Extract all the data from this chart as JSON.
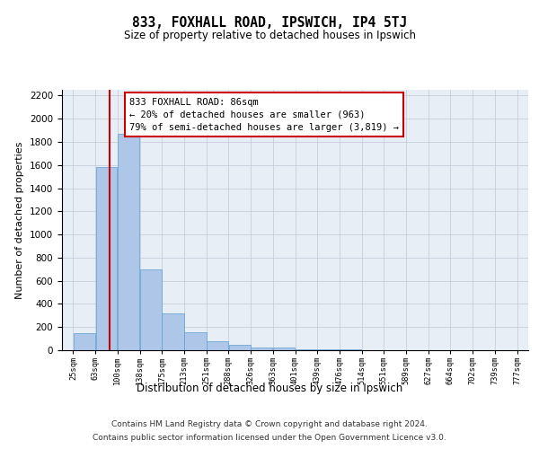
{
  "title": "833, FOXHALL ROAD, IPSWICH, IP4 5TJ",
  "subtitle": "Size of property relative to detached houses in Ipswich",
  "xlabel": "Distribution of detached houses by size in Ipswich",
  "ylabel": "Number of detached properties",
  "footer_line1": "Contains HM Land Registry data © Crown copyright and database right 2024.",
  "footer_line2": "Contains public sector information licensed under the Open Government Licence v3.0.",
  "annotation_title": "833 FOXHALL ROAD: 86sqm",
  "annotation_line2": "← 20% of detached houses are smaller (963)",
  "annotation_line3": "79% of semi-detached houses are larger (3,819) →",
  "property_size": 86,
  "bar_left_edges": [
    25,
    63,
    100,
    138,
    175,
    213,
    251,
    288,
    326,
    363,
    401,
    439,
    476,
    514,
    551,
    589,
    627,
    664,
    702,
    739
  ],
  "bar_widths": [
    38,
    37,
    38,
    37,
    38,
    38,
    37,
    38,
    37,
    38,
    38,
    37,
    38,
    37,
    38,
    38,
    37,
    38,
    37,
    38
  ],
  "bar_heights": [
    150,
    1580,
    1870,
    700,
    315,
    155,
    80,
    45,
    25,
    20,
    10,
    5,
    5,
    3,
    2,
    1,
    1,
    0,
    0,
    0
  ],
  "bar_color": "#aec6e8",
  "bar_edge_color": "#5a9fd4",
  "red_line_color": "#cc0000",
  "annotation_box_color": "#cc0000",
  "grid_color": "#c0c8d8",
  "bg_color": "#e8eef5",
  "ylim": [
    0,
    2250
  ],
  "yticks": [
    0,
    200,
    400,
    600,
    800,
    1000,
    1200,
    1400,
    1600,
    1800,
    2000,
    2200
  ],
  "xtick_labels": [
    "25sqm",
    "63sqm",
    "100sqm",
    "138sqm",
    "175sqm",
    "213sqm",
    "251sqm",
    "288sqm",
    "326sqm",
    "363sqm",
    "401sqm",
    "439sqm",
    "476sqm",
    "514sqm",
    "551sqm",
    "589sqm",
    "627sqm",
    "664sqm",
    "702sqm",
    "739sqm",
    "777sqm"
  ],
  "xtick_positions": [
    25,
    63,
    100,
    138,
    175,
    213,
    251,
    288,
    326,
    363,
    401,
    439,
    476,
    514,
    551,
    589,
    627,
    664,
    702,
    739,
    777
  ],
  "xlim": [
    6,
    796
  ]
}
